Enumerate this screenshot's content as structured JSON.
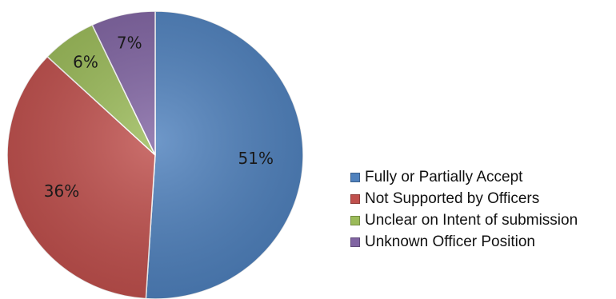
{
  "chart_data": {
    "type": "pie",
    "title": "",
    "legend_position": "right",
    "start_angle": "top, clockwise",
    "slices": [
      {
        "label": "Fully or Partially Accept",
        "value": 51,
        "display": "51%",
        "color": "#4f81bd"
      },
      {
        "label": "Not Supported by Officers",
        "value": 36,
        "display": "36%",
        "color": "#c0504d"
      },
      {
        "label": "Unclear on Intent of submission",
        "value": 6,
        "display": "6%",
        "color": "#9bbb59"
      },
      {
        "label": "Unknown Officer Position",
        "value": 7,
        "display": "7%",
        "color": "#8064a2"
      }
    ]
  }
}
